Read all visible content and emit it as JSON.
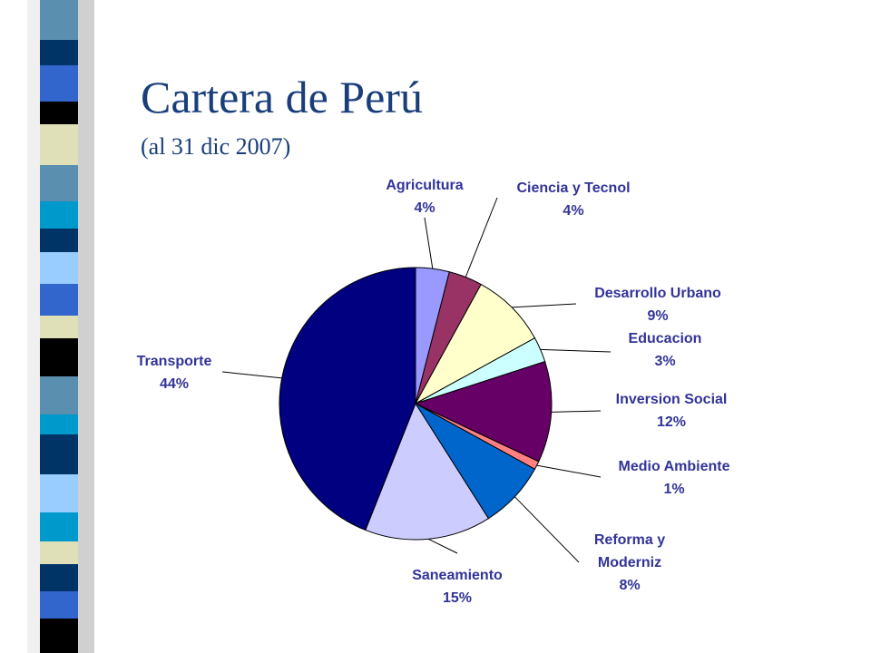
{
  "title": "Cartera de Perú",
  "subtitle": "(al 31 dic 2007)",
  "chart_data": {
    "type": "pie",
    "categories": [
      "Agricultura",
      "Ciencia y Tecnol",
      "Desarrollo Urbano",
      "Educacion",
      "Inversion Social",
      "Medio Ambiente",
      "Reforma y Moderniz",
      "Saneamiento",
      "Transporte"
    ],
    "values": [
      4,
      4,
      9,
      3,
      12,
      1,
      8,
      15,
      44
    ],
    "value_labels": [
      "4%",
      "4%",
      "9%",
      "3%",
      "12%",
      "1%",
      "8%",
      "15%",
      "44%"
    ],
    "colors": [
      "#9999ff",
      "#993366",
      "#ffffcc",
      "#ccffff",
      "#660066",
      "#ff8080",
      "#0066cc",
      "#ccccff",
      "#000080"
    ]
  }
}
